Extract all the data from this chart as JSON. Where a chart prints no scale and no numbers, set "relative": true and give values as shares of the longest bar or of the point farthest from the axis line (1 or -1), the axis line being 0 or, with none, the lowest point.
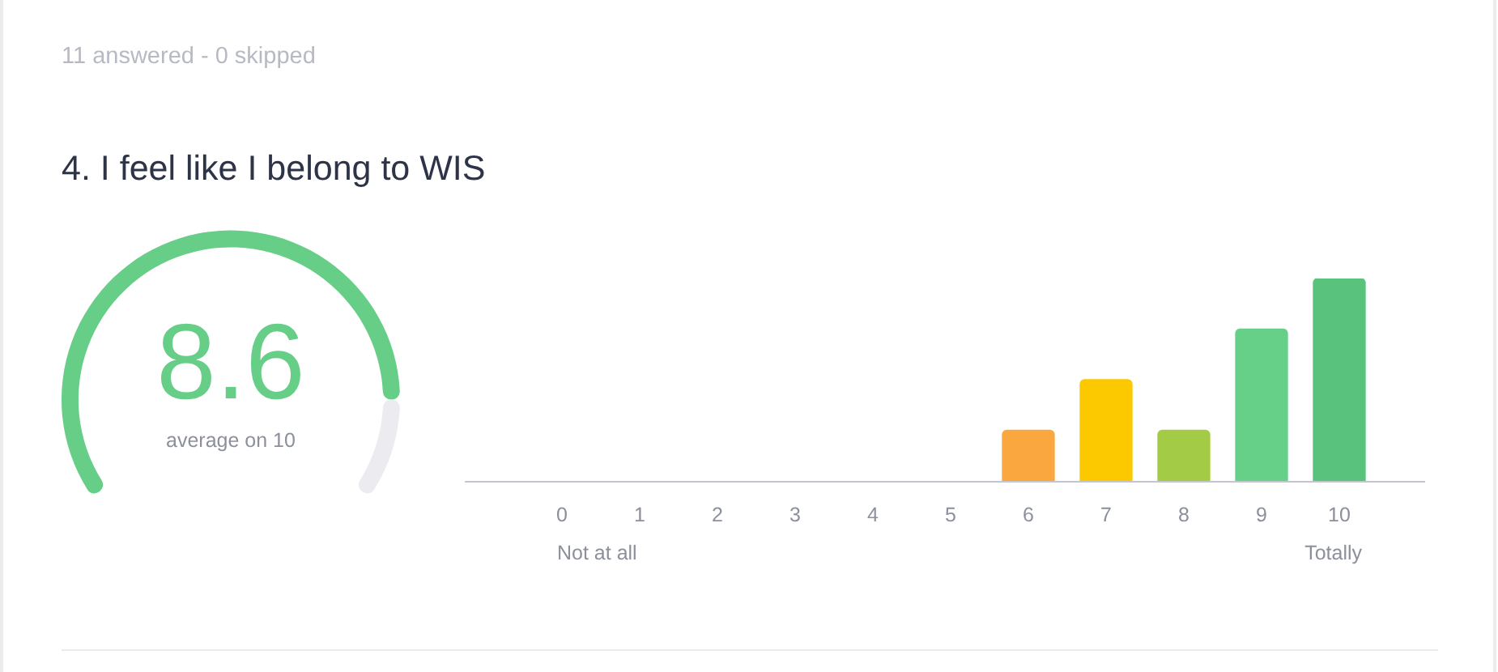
{
  "chart_data": [
    {
      "type": "donut",
      "title": "4. I feel like I belong to WIS",
      "subtitle": "11 answered - 0 skipped",
      "categories": [
        null,
        null
      ],
      "values": [
        8.6,
        1.4
      ],
      "colors": [
        "#66ce87",
        "#ebebf0"
      ],
      "value_labels": [
        "8.6",
        null
      ],
      "annotations": [
        "average on 10"
      ]
    },
    {
      "type": "bar",
      "categories": [
        "0",
        "1",
        "2",
        "3",
        "4",
        "5",
        "6",
        "7",
        "8",
        "9",
        "10"
      ],
      "values": [
        0,
        0,
        0,
        0,
        0,
        0,
        0.25,
        0.5,
        0.25,
        0.75,
        1
      ],
      "colors": [
        null,
        null,
        null,
        null,
        null,
        null,
        "#f9a73e",
        "#fcc800",
        "#a3cb45",
        "#66cf88",
        "#59c27d"
      ],
      "relative": true,
      "annotations": [
        "Not at all",
        "Totally"
      ]
    }
  ]
}
